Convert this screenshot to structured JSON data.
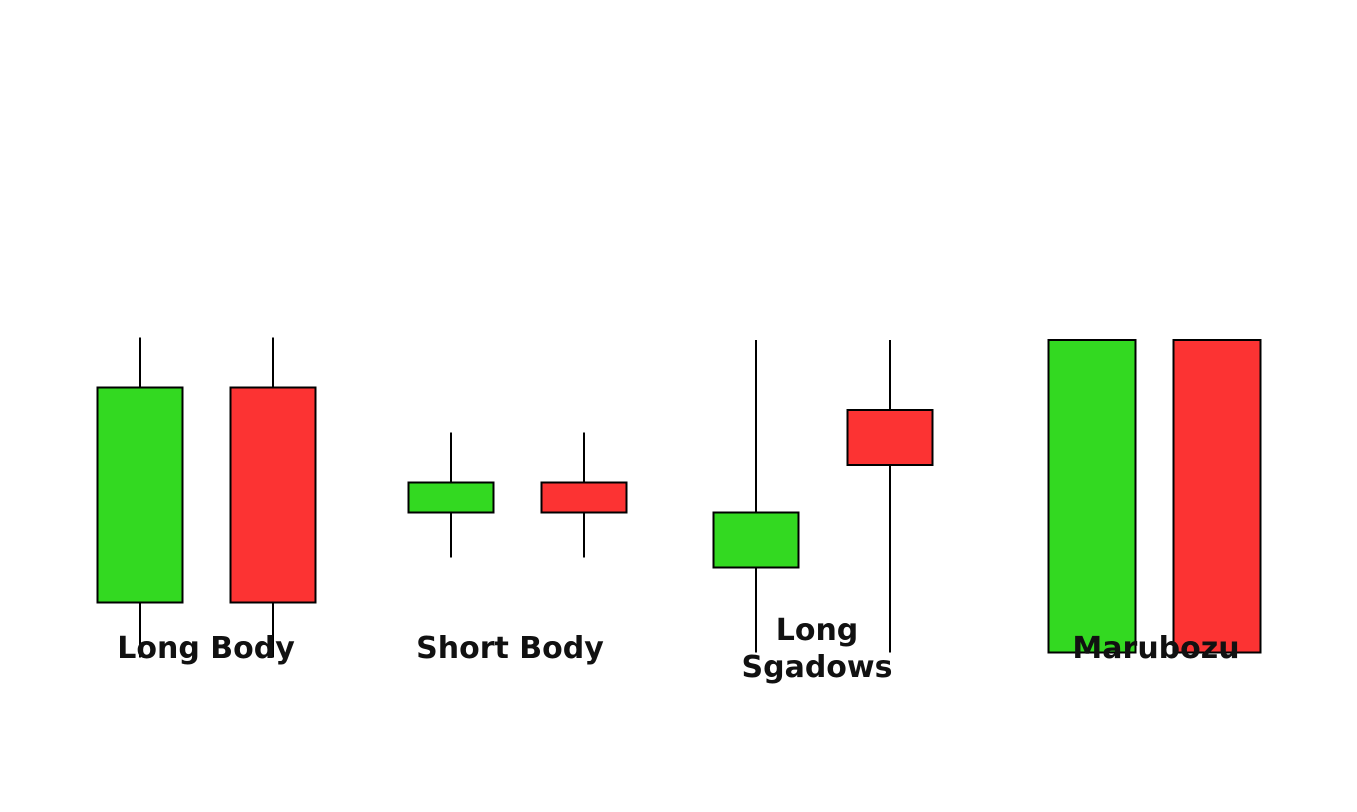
{
  "colors": {
    "bullish": "#33d921",
    "bearish": "#fc3333",
    "outline": "#000000"
  },
  "groups": [
    {
      "label_line1": "Long Body",
      "label_line2": "",
      "candles": [
        {
          "direction": "bullish",
          "open": 27.5,
          "close": 70.5,
          "high": 80.5,
          "low": 16.5
        },
        {
          "direction": "bearish",
          "open": 70.5,
          "close": 27.5,
          "high": 80.5,
          "low": 16.5
        }
      ]
    },
    {
      "label_line1": "Short Body",
      "label_line2": "",
      "candles": [
        {
          "direction": "bullish",
          "open": 45.5,
          "close": 51.5,
          "high": 61.5,
          "low": 36.5
        },
        {
          "direction": "bearish",
          "open": 51.5,
          "close": 45.5,
          "high": 61.5,
          "low": 36.5
        }
      ]
    },
    {
      "label_line1": "Long",
      "label_line2": "Sgadows",
      "candles": [
        {
          "direction": "bullish",
          "open": 34.5,
          "close": 45.5,
          "high": 80.0,
          "low": 17.5
        },
        {
          "direction": "bearish",
          "open": 66.0,
          "close": 55.0,
          "high": 80.0,
          "low": 17.5
        }
      ]
    },
    {
      "label_line1": "Marubozu",
      "label_line2": "",
      "candles": [
        {
          "direction": "bullish",
          "open": 17.5,
          "close": 80.0,
          "high": 80.0,
          "low": 17.5
        },
        {
          "direction": "bearish",
          "open": 80.0,
          "close": 17.5,
          "high": 80.0,
          "low": 17.5
        }
      ]
    }
  ]
}
